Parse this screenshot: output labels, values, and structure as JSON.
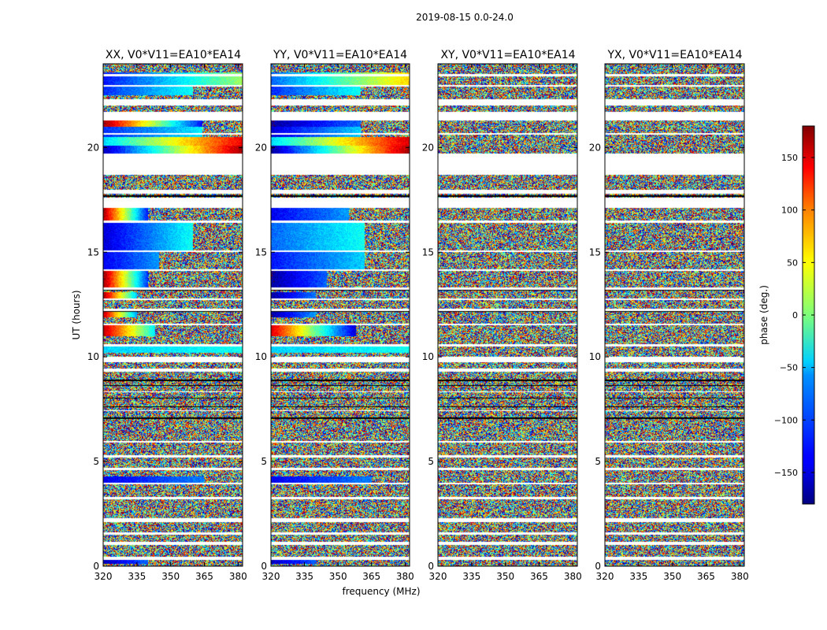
{
  "suptitle": "2019-08-15 0.0-24.0",
  "chart_data": {
    "type": "heatmap",
    "ylabel": "UT (hours)",
    "xlabel": "frequency (MHz)",
    "xlim": [
      320,
      382
    ],
    "ylim": [
      0,
      24
    ],
    "xticks": [
      "320",
      "335",
      "350",
      "365",
      "380"
    ],
    "xtick_values": [
      320,
      335,
      350,
      365,
      380
    ],
    "yticks": [
      "0",
      "5",
      "10",
      "15",
      "20"
    ],
    "ytick_values": [
      0,
      5,
      10,
      15,
      20
    ],
    "colormap": "jet",
    "colorbar": {
      "label": "phase (deg.)",
      "range": [
        -180,
        180
      ],
      "ticks": [
        "150",
        "100",
        "50",
        "0",
        "−50",
        "−100",
        "−150"
      ],
      "tick_values": [
        150,
        100,
        50,
        0,
        -50,
        -100,
        -150
      ]
    },
    "panels": [
      {
        "title": "XX, V0*V11=EA10*EA14",
        "coherent_bands": [
          {
            "y0": 0.1,
            "y1": 0.3,
            "phase_start": -160,
            "phase_end": -100,
            "f_cut": 340
          },
          {
            "y0": 4.0,
            "y1": 4.3,
            "phase_start": -140,
            "phase_end": -90,
            "f_cut": 365
          },
          {
            "y0": 10.2,
            "y1": 10.5,
            "phase_start": -60,
            "phase_end": -40,
            "f_cut": 382
          },
          {
            "y0": 11.0,
            "y1": 11.5,
            "phase_start": 160,
            "phase_end": -50,
            "f_cut": 343
          },
          {
            "y0": 11.9,
            "y1": 12.2,
            "phase_start": 160,
            "phase_end": -80,
            "f_cut": 335
          },
          {
            "y0": 12.8,
            "y1": 13.1,
            "phase_start": 170,
            "phase_end": -70,
            "f_cut": 335
          },
          {
            "y0": 13.3,
            "y1": 14.1,
            "phase_start": 175,
            "phase_end": -120,
            "f_cut": 340
          },
          {
            "y0": 14.1,
            "y1": 15.0,
            "phase_start": -140,
            "phase_end": -80,
            "f_cut": 345
          },
          {
            "y0": 15.0,
            "y1": 16.4,
            "phase_start": -150,
            "phase_end": -40,
            "f_cut": 360
          },
          {
            "y0": 16.0,
            "y1": 17.1,
            "phase_start": 170,
            "phase_end": -130,
            "f_cut": 340
          },
          {
            "y0": 19.7,
            "y1": 20.1,
            "phase_start": -160,
            "phase_end": 170,
            "f_cut": 382
          },
          {
            "y0": 20.1,
            "y1": 20.5,
            "phase_start": -60,
            "phase_end": 140,
            "f_cut": 382
          },
          {
            "y0": 20.5,
            "y1": 21.0,
            "phase_start": -120,
            "phase_end": -50,
            "f_cut": 364
          },
          {
            "y0": 21.0,
            "y1": 21.3,
            "phase_start": 170,
            "phase_end": -130,
            "f_cut": 364
          },
          {
            "y0": 22.5,
            "y1": 23.0,
            "phase_start": -120,
            "phase_end": -40,
            "f_cut": 360
          },
          {
            "y0": 23.0,
            "y1": 23.6,
            "phase_start": -130,
            "phase_end": 10,
            "f_cut": 382
          }
        ]
      },
      {
        "title": "YY, V0*V11=EA10*EA14",
        "coherent_bands": [
          {
            "y0": 0.1,
            "y1": 0.3,
            "phase_start": -160,
            "phase_end": -100,
            "f_cut": 340
          },
          {
            "y0": 4.0,
            "y1": 4.3,
            "phase_start": -140,
            "phase_end": -90,
            "f_cut": 365
          },
          {
            "y0": 10.2,
            "y1": 10.5,
            "phase_start": -60,
            "phase_end": -40,
            "f_cut": 382
          },
          {
            "y0": 11.0,
            "y1": 11.5,
            "phase_start": 150,
            "phase_end": -150,
            "f_cut": 358
          },
          {
            "y0": 11.9,
            "y1": 12.2,
            "phase_start": -170,
            "phase_end": -80,
            "f_cut": 340
          },
          {
            "y0": 12.8,
            "y1": 13.1,
            "phase_start": -170,
            "phase_end": -90,
            "f_cut": 340
          },
          {
            "y0": 13.3,
            "y1": 14.1,
            "phase_start": -170,
            "phase_end": -100,
            "f_cut": 345
          },
          {
            "y0": 14.1,
            "y1": 15.0,
            "phase_start": -130,
            "phase_end": -60,
            "f_cut": 362
          },
          {
            "y0": 15.0,
            "y1": 16.4,
            "phase_start": -100,
            "phase_end": -40,
            "f_cut": 362
          },
          {
            "y0": 16.0,
            "y1": 17.1,
            "phase_start": -140,
            "phase_end": -80,
            "f_cut": 355
          },
          {
            "y0": 19.7,
            "y1": 20.1,
            "phase_start": -170,
            "phase_end": 170,
            "f_cut": 382
          },
          {
            "y0": 20.1,
            "y1": 20.5,
            "phase_start": -60,
            "phase_end": 150,
            "f_cut": 382
          },
          {
            "y0": 20.5,
            "y1": 21.0,
            "phase_start": -150,
            "phase_end": -60,
            "f_cut": 360
          },
          {
            "y0": 21.0,
            "y1": 21.3,
            "phase_start": -170,
            "phase_end": -100,
            "f_cut": 360
          },
          {
            "y0": 22.5,
            "y1": 23.0,
            "phase_start": -120,
            "phase_end": -40,
            "f_cut": 360
          },
          {
            "y0": 23.0,
            "y1": 23.6,
            "phase_start": -100,
            "phase_end": 60,
            "f_cut": 382
          }
        ]
      },
      {
        "title": "XY, V0*V11=EA10*EA14",
        "coherent_bands": []
      },
      {
        "title": "YX, V0*V11=EA10*EA14",
        "coherent_bands": []
      }
    ],
    "blank_rows": [
      [
        0.3,
        0.45
      ],
      [
        1.0,
        1.15
      ],
      [
        1.5,
        1.6
      ],
      [
        2.1,
        2.3
      ],
      [
        3.2,
        3.3
      ],
      [
        3.9,
        4.0
      ],
      [
        4.6,
        4.7
      ],
      [
        5.2,
        5.3
      ],
      [
        5.9,
        6.0
      ],
      [
        7.4,
        7.45
      ],
      [
        8.3,
        8.35
      ],
      [
        9.3,
        9.45
      ],
      [
        9.75,
        10.0
      ],
      [
        10.5,
        10.6
      ],
      [
        11.5,
        11.6
      ],
      [
        12.2,
        12.3
      ],
      [
        12.7,
        12.8
      ],
      [
        13.2,
        13.3
      ],
      [
        14.1,
        14.2
      ],
      [
        15.0,
        15.1
      ],
      [
        16.4,
        16.5
      ],
      [
        17.1,
        17.6
      ],
      [
        17.8,
        18.0
      ],
      [
        18.7,
        19.0
      ],
      [
        19.0,
        19.7
      ],
      [
        20.6,
        20.7
      ],
      [
        21.3,
        21.7
      ],
      [
        22.0,
        22.3
      ],
      [
        22.9,
        23.0
      ],
      [
        23.4,
        23.5
      ]
    ],
    "black_rows": [
      [
        7.05,
        7.1
      ],
      [
        7.6,
        7.65
      ],
      [
        8.0,
        8.05
      ],
      [
        8.6,
        8.65
      ],
      [
        8.85,
        8.9
      ],
      [
        9.9,
        9.95
      ],
      [
        12.15,
        12.2
      ],
      [
        13.15,
        13.2
      ],
      [
        17.65,
        17.7
      ]
    ]
  }
}
